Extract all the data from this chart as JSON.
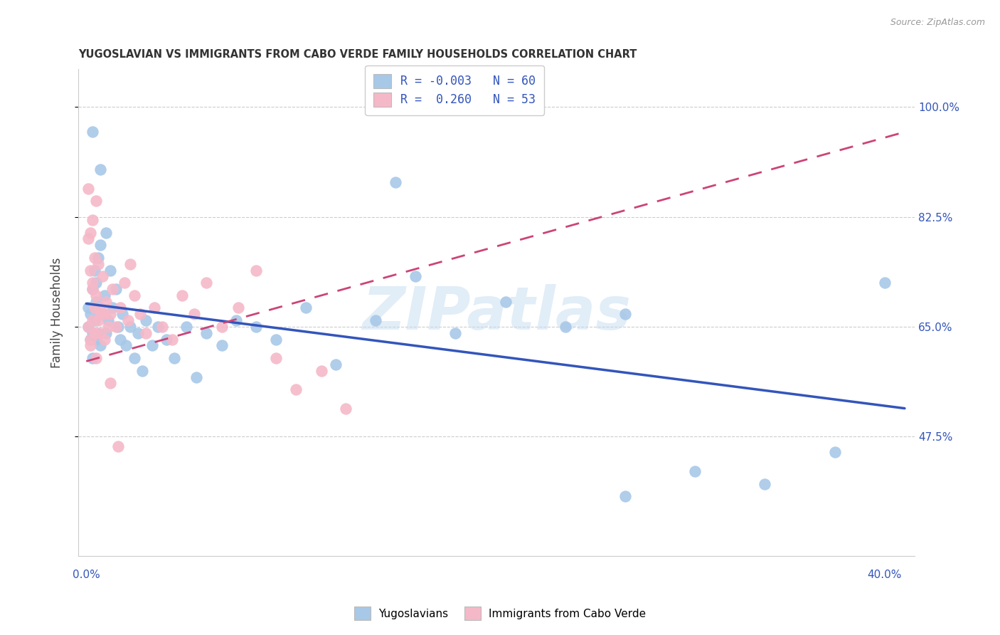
{
  "title": "YUGOSLAVIAN VS IMMIGRANTS FROM CABO VERDE FAMILY HOUSEHOLDS CORRELATION CHART",
  "source": "Source: ZipAtlas.com",
  "ylabel": "Family Households",
  "ytick_values": [
    0.475,
    0.65,
    0.825,
    1.0
  ],
  "ytick_labels": [
    "47.5%",
    "65.0%",
    "82.5%",
    "100.0%"
  ],
  "ymin": 0.285,
  "ymax": 1.06,
  "xmin": -0.004,
  "xmax": 0.415,
  "blue_color": "#A8C8E8",
  "pink_color": "#F5B8C8",
  "blue_line_color": "#3355BB",
  "pink_line_color": "#CC4477",
  "background_color": "#ffffff",
  "grid_color": "#cccccc",
  "title_color": "#333333",
  "source_color": "#999999",
  "watermark_text": "ZIPatlas",
  "watermark_color": "#C5DCF0",
  "blue_R": -0.003,
  "blue_N": 60,
  "pink_R": 0.26,
  "pink_N": 53,
  "blue_x": [
    0.001,
    0.001,
    0.002,
    0.002,
    0.003,
    0.003,
    0.003,
    0.004,
    0.004,
    0.005,
    0.005,
    0.005,
    0.006,
    0.006,
    0.007,
    0.007,
    0.008,
    0.009,
    0.01,
    0.01,
    0.011,
    0.012,
    0.013,
    0.015,
    0.016,
    0.017,
    0.018,
    0.02,
    0.022,
    0.024,
    0.026,
    0.028,
    0.03,
    0.033,
    0.036,
    0.04,
    0.044,
    0.05,
    0.055,
    0.06,
    0.068,
    0.075,
    0.085,
    0.095,
    0.11,
    0.125,
    0.145,
    0.165,
    0.185,
    0.21,
    0.24,
    0.27,
    0.305,
    0.34,
    0.375,
    0.4,
    0.155,
    0.27,
    0.003,
    0.007
  ],
  "blue_y": [
    0.65,
    0.68,
    0.67,
    0.63,
    0.71,
    0.64,
    0.6,
    0.74,
    0.66,
    0.72,
    0.69,
    0.63,
    0.76,
    0.64,
    0.78,
    0.62,
    0.67,
    0.7,
    0.8,
    0.64,
    0.66,
    0.74,
    0.68,
    0.71,
    0.65,
    0.63,
    0.67,
    0.62,
    0.65,
    0.6,
    0.64,
    0.58,
    0.66,
    0.62,
    0.65,
    0.63,
    0.6,
    0.65,
    0.57,
    0.64,
    0.62,
    0.66,
    0.65,
    0.63,
    0.68,
    0.59,
    0.66,
    0.73,
    0.64,
    0.69,
    0.65,
    0.38,
    0.42,
    0.4,
    0.45,
    0.72,
    0.88,
    0.67,
    0.96,
    0.9
  ],
  "pink_x": [
    0.001,
    0.001,
    0.001,
    0.002,
    0.002,
    0.002,
    0.003,
    0.003,
    0.003,
    0.004,
    0.004,
    0.004,
    0.005,
    0.005,
    0.006,
    0.006,
    0.007,
    0.007,
    0.008,
    0.009,
    0.01,
    0.011,
    0.012,
    0.013,
    0.015,
    0.017,
    0.019,
    0.021,
    0.024,
    0.027,
    0.03,
    0.034,
    0.038,
    0.043,
    0.048,
    0.054,
    0.06,
    0.068,
    0.076,
    0.085,
    0.095,
    0.105,
    0.118,
    0.13,
    0.002,
    0.003,
    0.004,
    0.005,
    0.007,
    0.009,
    0.012,
    0.016,
    0.022
  ],
  "pink_y": [
    0.65,
    0.79,
    0.87,
    0.63,
    0.74,
    0.8,
    0.66,
    0.72,
    0.82,
    0.68,
    0.76,
    0.64,
    0.7,
    0.85,
    0.66,
    0.75,
    0.64,
    0.68,
    0.73,
    0.67,
    0.69,
    0.65,
    0.67,
    0.71,
    0.65,
    0.68,
    0.72,
    0.66,
    0.7,
    0.67,
    0.64,
    0.68,
    0.65,
    0.63,
    0.7,
    0.67,
    0.72,
    0.65,
    0.68,
    0.74,
    0.6,
    0.55,
    0.58,
    0.52,
    0.62,
    0.71,
    0.64,
    0.6,
    0.67,
    0.63,
    0.56,
    0.46,
    0.75
  ],
  "pink_line_x0": 0.0,
  "pink_line_x1": 0.41,
  "pink_line_y0": 0.595,
  "pink_line_y1": 0.96
}
